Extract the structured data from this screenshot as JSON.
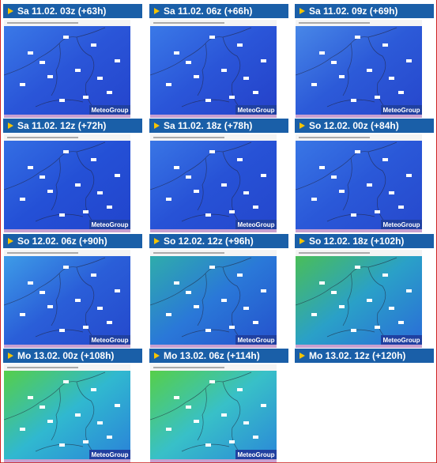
{
  "panels": [
    {
      "label": "Sa 11.02. 03z (+63h)",
      "brand": "MeteoGroup"
    },
    {
      "label": "Sa 11.02. 06z (+66h)",
      "brand": "MeteoGroup"
    },
    {
      "label": "Sa 11.02. 09z (+69h)",
      "brand": "MeteoGroup"
    },
    {
      "label": "Sa 11.02. 12z (+72h)",
      "brand": "MeteoGroup"
    },
    {
      "label": "Sa 11.02. 18z (+78h)",
      "brand": "MeteoGroup"
    },
    {
      "label": "So 12.02. 00z (+84h)",
      "brand": "MeteoGroup"
    },
    {
      "label": "So 12.02. 06z (+90h)",
      "brand": "MeteoGroup"
    },
    {
      "label": "So 12.02. 12z (+96h)",
      "brand": "MeteoGroup"
    },
    {
      "label": "So 12.02. 18z (+102h)",
      "brand": "MeteoGroup"
    },
    {
      "label": "Mo 13.02. 00z (+108h)",
      "brand": "MeteoGroup"
    },
    {
      "label": "Mo 13.02. 06z (+114h)",
      "brand": "MeteoGroup"
    },
    {
      "label": "Mo 13.02. 12z (+120h)"
    }
  ]
}
